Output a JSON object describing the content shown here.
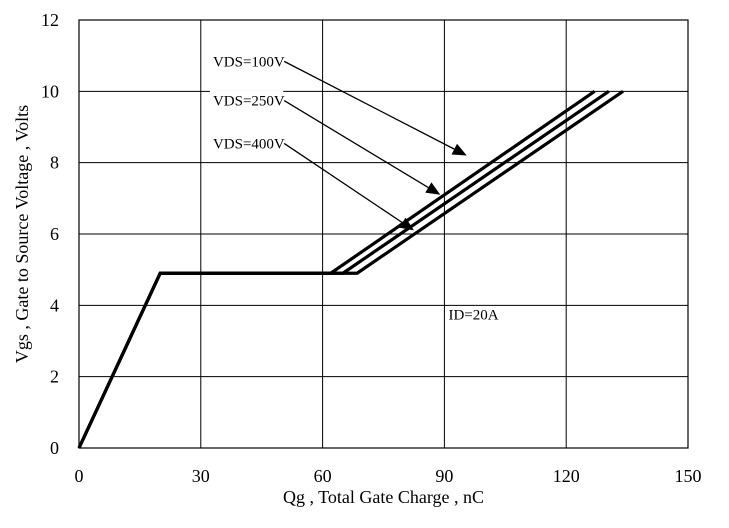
{
  "chart_data": {
    "type": "line",
    "title": "",
    "xlabel": "Qg , Total Gate Charge , nC",
    "ylabel": "Vgs , Gate to Source Voltage , Volts",
    "xlim": [
      0,
      150
    ],
    "ylim": [
      0,
      12
    ],
    "x_ticks": [
      0,
      30,
      60,
      90,
      120,
      150
    ],
    "y_ticks": [
      0,
      2,
      4,
      6,
      8,
      10,
      12
    ],
    "grid": true,
    "series": [
      {
        "name": "VDS=100V",
        "x": [
          0,
          20,
          62,
          127
        ],
        "y": [
          0,
          4.9,
          4.9,
          10
        ]
      },
      {
        "name": "VDS=250V",
        "x": [
          0,
          20,
          65,
          130.5
        ],
        "y": [
          0,
          4.9,
          4.9,
          10
        ]
      },
      {
        "name": "VDS=400V",
        "x": [
          0,
          20,
          68.5,
          134
        ],
        "y": [
          0,
          4.9,
          4.9,
          10
        ]
      }
    ],
    "annotations": [
      {
        "text": "VDS=100V",
        "text_at": [
          33,
          10.7
        ],
        "arrow_to": [
          95.5,
          8.2
        ]
      },
      {
        "text": "VDS=250V",
        "text_at": [
          33,
          9.6
        ],
        "arrow_to": [
          89,
          7.1
        ]
      },
      {
        "text": "VDS=400V",
        "text_at": [
          33,
          8.4
        ],
        "arrow_to": [
          82.5,
          6.1
        ]
      },
      {
        "text": "ID=20A",
        "text_at": [
          91,
          3.6
        ]
      }
    ]
  }
}
